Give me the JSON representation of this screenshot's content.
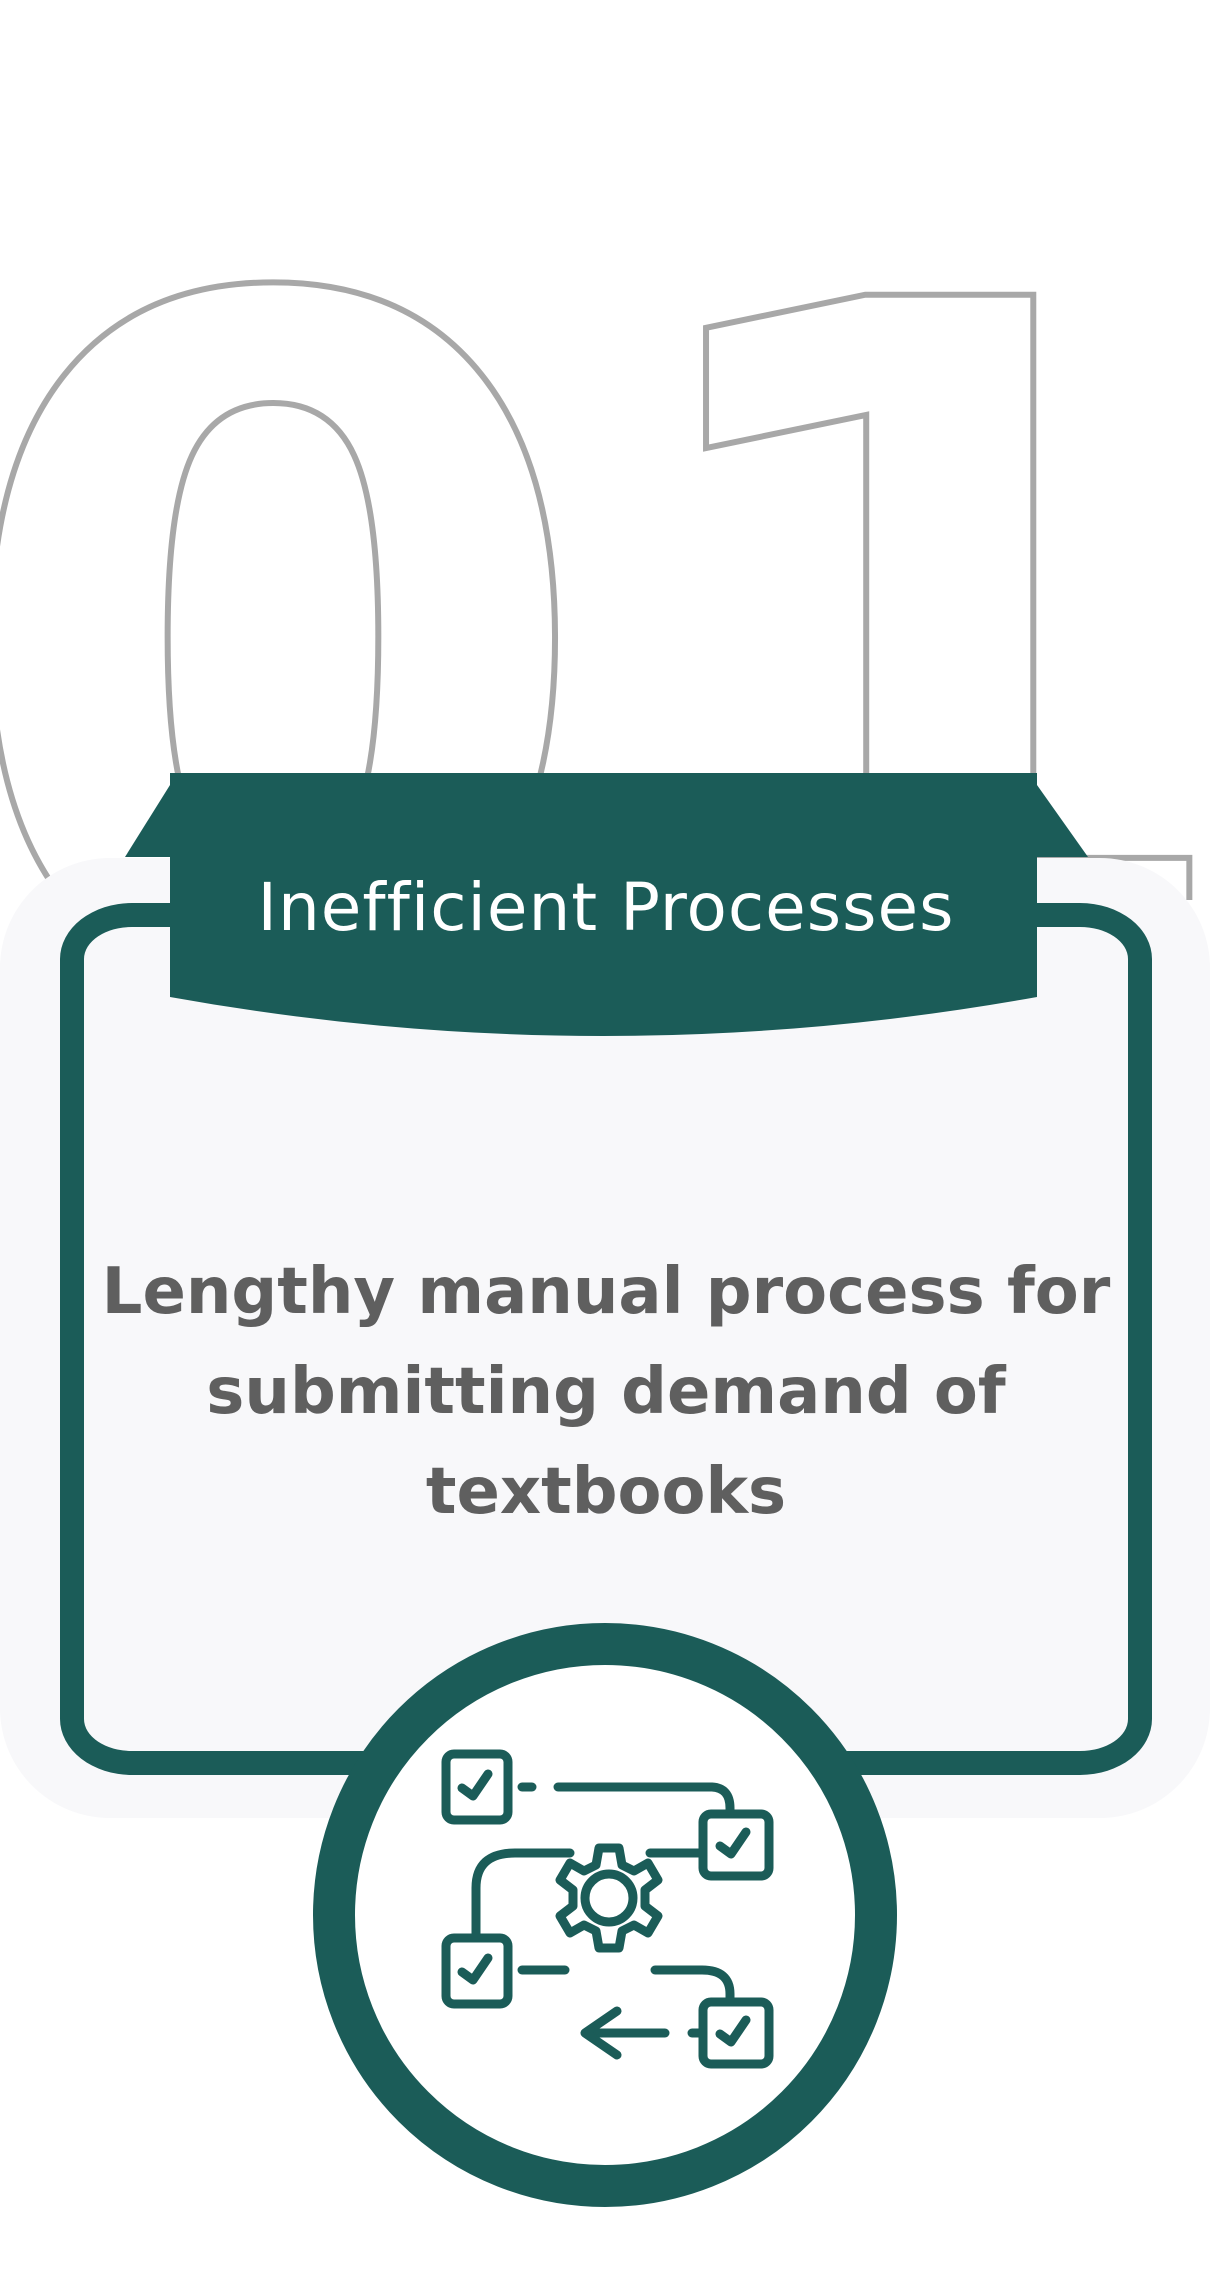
{
  "step": {
    "number": "01"
  },
  "card": {
    "title": "Inefficient Processes",
    "description": "Lengthy manual process for submitting demand of textbooks",
    "icon": "workflow-process-gear-icon"
  },
  "colors": {
    "accent": "#1b5c58",
    "text_gray": "#5f5f5f",
    "number_outline": "#a8a8a8",
    "card_background": "#f8f8fa"
  }
}
